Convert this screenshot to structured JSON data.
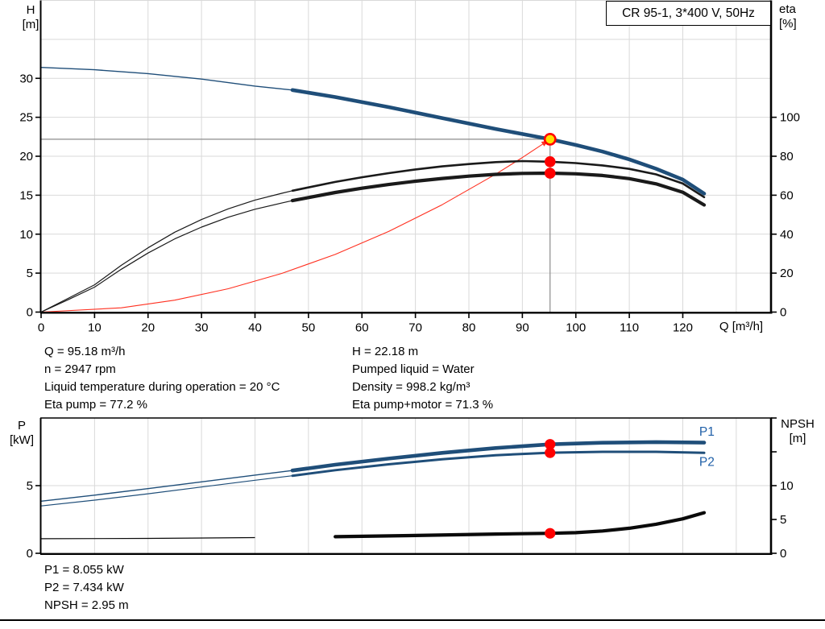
{
  "title_box": {
    "label": "CR 95-1, 3*400 V, 50Hz"
  },
  "axis_titles": {
    "h_line1": "H",
    "h_line2": "[m]",
    "eta_line1": "eta",
    "eta_line2": "[%]",
    "q": "Q [m³/h]",
    "p_line1": "P",
    "p_line2": "[kW]",
    "npsh_line1": "NPSH",
    "npsh_line2": "[m]"
  },
  "info_top": {
    "left": [
      "Q = 95.18 m³/h",
      "n = 2947 rpm",
      "Liquid temperature during operation = 20 °C",
      "Eta pump = 77.2 %"
    ],
    "right": [
      "H = 22.18 m",
      "Pumped liquid = Water",
      "Density = 998.2 kg/m³",
      "Eta pump+motor = 71.3 %"
    ]
  },
  "info_bottom": [
    "P1 = 8.055 kW",
    "P2 = 7.434 kW",
    "NPSH = 2.95 m"
  ],
  "colors": {
    "curve_blue": "#1f4e79",
    "curve_black": "#1a1a1a",
    "system_red": "#ff3020",
    "dot_red": "#ff0000",
    "duty_yellow": "#ffdf00",
    "grid": "#d9d9d9",
    "duty_line_gray": "#8c8c8c",
    "axis": "#000000",
    "series_label_blue": "#2060a8"
  },
  "chart_data": [
    {
      "type": "line",
      "title": "CR 95-1, 3*400 V, 50Hz",
      "xlabel": "Q [m³/h]",
      "ylabel_left": "H [m]",
      "ylabel_right": "eta [%]",
      "xlim": [
        0,
        136.5
      ],
      "ylim_left": [
        0,
        40
      ],
      "ylim_right": [
        0,
        160
      ],
      "xticks": [
        0,
        10,
        20,
        30,
        40,
        50,
        60,
        70,
        80,
        90,
        100,
        110,
        120
      ],
      "xgrid": [
        10,
        20,
        30,
        40,
        50,
        60,
        70,
        80,
        90,
        100,
        110,
        120,
        130
      ],
      "yticks_left": [
        0,
        5,
        10,
        15,
        20,
        25,
        30
      ],
      "ygrid_left": [
        5,
        10,
        15,
        20,
        25,
        30,
        35,
        40
      ],
      "yticks_right": [
        0,
        20,
        40,
        60,
        80,
        100
      ],
      "grid": true,
      "legend_position": "none",
      "duty_point": {
        "q": 95.18,
        "h": 22.18,
        "eta_pump": 77.2,
        "eta_pump_motor": 71.3
      },
      "series": [
        {
          "name": "system-curve",
          "axis": "left",
          "color": "#ff3020",
          "thin": 1.1,
          "thick": 1.1,
          "thick_from": 999,
          "arrow_end": true,
          "points": [
            [
              0,
              0
            ],
            [
              15,
              0.55
            ],
            [
              25,
              1.53
            ],
            [
              35,
              3.0
            ],
            [
              45,
              4.96
            ],
            [
              55,
              7.4
            ],
            [
              65,
              10.35
            ],
            [
              75,
              13.78
            ],
            [
              85,
              17.69
            ],
            [
              90,
              19.83
            ],
            [
              95.18,
              22.18
            ]
          ]
        },
        {
          "name": "eta-pump",
          "axis": "right",
          "color": "#1a1a1a",
          "thin": 1.2,
          "thick": 2.6,
          "thick_from": 47,
          "points": [
            [
              0,
              0
            ],
            [
              5,
              7
            ],
            [
              10,
              14
            ],
            [
              15,
              24
            ],
            [
              20,
              33
            ],
            [
              25,
              41
            ],
            [
              30,
              47.5
            ],
            [
              35,
              53
            ],
            [
              40,
              57.5
            ],
            [
              45,
              61
            ],
            [
              47,
              62.3
            ],
            [
              50,
              64
            ],
            [
              55,
              66.8
            ],
            [
              60,
              69.2
            ],
            [
              65,
              71.3
            ],
            [
              70,
              73.2
            ],
            [
              75,
              74.8
            ],
            [
              80,
              76
            ],
            [
              85,
              77
            ],
            [
              90,
              77.5
            ],
            [
              95.18,
              77.2
            ],
            [
              100,
              76.5
            ],
            [
              105,
              75.3
            ],
            [
              110,
              73.5
            ],
            [
              115,
              70.7
            ],
            [
              120,
              66
            ],
            [
              124,
              59
            ]
          ]
        },
        {
          "name": "eta-pump-motor",
          "axis": "right",
          "color": "#1a1a1a",
          "thin": 1.2,
          "thick": 4.2,
          "thick_from": 47,
          "points": [
            [
              0,
              0
            ],
            [
              5,
              6.3
            ],
            [
              10,
              12.8
            ],
            [
              15,
              22
            ],
            [
              20,
              30.3
            ],
            [
              25,
              37.6
            ],
            [
              30,
              43.6
            ],
            [
              35,
              48.7
            ],
            [
              40,
              52.8
            ],
            [
              45,
              56
            ],
            [
              47,
              57.2
            ],
            [
              50,
              58.8
            ],
            [
              55,
              61.4
            ],
            [
              60,
              63.6
            ],
            [
              65,
              65.5
            ],
            [
              70,
              67.2
            ],
            [
              75,
              68.6
            ],
            [
              80,
              69.8
            ],
            [
              85,
              70.7
            ],
            [
              90,
              71.2
            ],
            [
              95.18,
              71.3
            ],
            [
              100,
              71
            ],
            [
              105,
              70.1
            ],
            [
              110,
              68.5
            ],
            [
              115,
              65.8
            ],
            [
              120,
              61.5
            ],
            [
              124,
              55
            ]
          ]
        },
        {
          "name": "head",
          "axis": "left",
          "color": "#1f4e79",
          "thin": 1.4,
          "thick": 4.6,
          "thick_from": 47,
          "points": [
            [
              0,
              31.4
            ],
            [
              10,
              31.1
            ],
            [
              20,
              30.6
            ],
            [
              30,
              29.9
            ],
            [
              40,
              29.0
            ],
            [
              47,
              28.5
            ],
            [
              55,
              27.6
            ],
            [
              65,
              26.3
            ],
            [
              75,
              24.9
            ],
            [
              85,
              23.5
            ],
            [
              90,
              22.85
            ],
            [
              95.18,
              22.18
            ],
            [
              100,
              21.45
            ],
            [
              105,
              20.6
            ],
            [
              110,
              19.6
            ],
            [
              115,
              18.4
            ],
            [
              120,
              17.0
            ],
            [
              124,
              15.2
            ]
          ]
        }
      ],
      "markers": [
        {
          "name": "duty-point",
          "axis": "left",
          "q": 95.18,
          "v": 22.18,
          "fill": "#ffdf00",
          "stroke": "#ff0000",
          "stroke_w": 2.6,
          "r": 6.6
        },
        {
          "name": "eta-pump-point",
          "axis": "right",
          "q": 95.18,
          "v": 77.2,
          "fill": "#ff0000",
          "stroke": "none",
          "stroke_w": 0,
          "r": 6.8
        },
        {
          "name": "eta-pump-motor-point",
          "axis": "right",
          "q": 95.18,
          "v": 71.3,
          "fill": "#ff0000",
          "stroke": "none",
          "stroke_w": 0,
          "r": 6.8
        }
      ]
    },
    {
      "type": "line",
      "xlabel": "",
      "ylabel_left": "P [kW]",
      "ylabel_right": "NPSH [m]",
      "xlim": [
        0,
        136.5
      ],
      "ylim_left": [
        0,
        10
      ],
      "ylim_right": [
        0,
        20
      ],
      "xticks": [],
      "xgrid": [
        10,
        20,
        30,
        40,
        50,
        60,
        70,
        80,
        90,
        100,
        110,
        120,
        130
      ],
      "yticks_left": [
        0,
        5
      ],
      "ygrid_left": [
        5
      ],
      "yticks_right": [
        0,
        5,
        10
      ],
      "yticks_right_unlabeled": [
        15,
        20
      ],
      "grid": true,
      "legend_position": "inline-right",
      "operating_values": {
        "p1_kw": 8.055,
        "p2_kw": 7.434,
        "npsh_m": 2.95
      },
      "series": [
        {
          "name": "p1",
          "axis": "left",
          "color": "#1f4e79",
          "thin": 1.4,
          "thick": 4.6,
          "thick_from": 47,
          "points": [
            [
              0,
              3.85
            ],
            [
              10,
              4.3
            ],
            [
              20,
              4.78
            ],
            [
              30,
              5.28
            ],
            [
              40,
              5.78
            ],
            [
              47,
              6.12
            ],
            [
              55,
              6.55
            ],
            [
              65,
              7.0
            ],
            [
              75,
              7.42
            ],
            [
              85,
              7.78
            ],
            [
              95.18,
              8.055
            ],
            [
              105,
              8.17
            ],
            [
              115,
              8.22
            ],
            [
              124,
              8.18
            ]
          ]
        },
        {
          "name": "p2",
          "axis": "left",
          "color": "#1f4e79",
          "thin": 1.2,
          "thick": 3.0,
          "thick_from": 47,
          "points": [
            [
              0,
              3.5
            ],
            [
              10,
              3.93
            ],
            [
              20,
              4.4
            ],
            [
              30,
              4.9
            ],
            [
              40,
              5.4
            ],
            [
              47,
              5.73
            ],
            [
              55,
              6.14
            ],
            [
              65,
              6.58
            ],
            [
              75,
              6.95
            ],
            [
              85,
              7.25
            ],
            [
              95.18,
              7.434
            ],
            [
              105,
              7.5
            ],
            [
              115,
              7.5
            ],
            [
              124,
              7.42
            ]
          ]
        },
        {
          "name": "npsh",
          "axis": "right",
          "color": "#0a0a0a",
          "thin": 1.2,
          "thick": 4.2,
          "thick_from": 47,
          "points": [
            [
              0,
              2.15
            ],
            [
              20,
              2.2
            ],
            [
              40,
              2.32
            ],
            [
              55,
              2.45
            ],
            [
              70,
              2.63
            ],
            [
              85,
              2.85
            ],
            [
              95.18,
              2.95
            ],
            [
              100,
              3.05
            ],
            [
              105,
              3.3
            ],
            [
              110,
              3.7
            ],
            [
              115,
              4.3
            ],
            [
              120,
              5.1
            ],
            [
              124,
              6.0
            ]
          ]
        }
      ],
      "markers": [
        {
          "name": "p1-point",
          "axis": "left",
          "q": 95.18,
          "v": 8.055,
          "fill": "#ff0000",
          "stroke": "none",
          "stroke_w": 0,
          "r": 6.6
        },
        {
          "name": "p2-point",
          "axis": "left",
          "q": 95.18,
          "v": 7.434,
          "fill": "#ff0000",
          "stroke": "none",
          "stroke_w": 0,
          "r": 6.6
        },
        {
          "name": "npsh-point",
          "axis": "right",
          "q": 95.18,
          "v": 2.95,
          "fill": "#ff0000",
          "stroke": "none",
          "stroke_w": 0,
          "r": 6.6
        }
      ],
      "series_labels": [
        {
          "text": "P1",
          "axis": "left",
          "q": 124.5,
          "v": 9.0
        },
        {
          "text": "P2",
          "axis": "left",
          "q": 124.5,
          "v": 6.75
        }
      ]
    }
  ]
}
